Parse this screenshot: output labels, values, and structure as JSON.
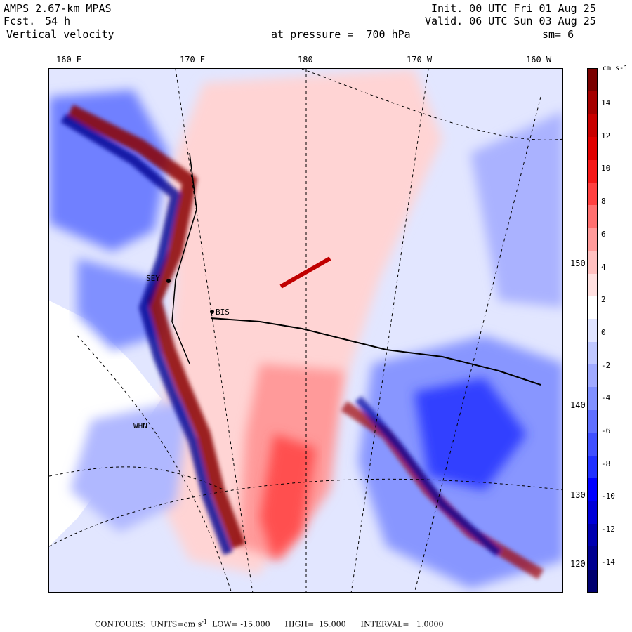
{
  "header": {
    "model": "AMPS 2.67-km MPAS",
    "fcst_label": "Fcst.",
    "fcst_value": "54 h",
    "field": "Vertical velocity",
    "pressure_text": "at pressure =  700 hPa",
    "init_text": "Init. 00 UTC Fri 01 Aug 25",
    "valid_text": "Valid. 06 UTC Sun 03 Aug 25",
    "smoothing": "sm= 6"
  },
  "lon_labels": [
    "160 E",
    "170 E",
    "180",
    "170 W",
    "160 W"
  ],
  "lat_labels": [
    "150 W",
    "140 W",
    "130 W",
    "120 W"
  ],
  "station_labels": [
    "SEY",
    "BIS",
    "WHN"
  ],
  "colorbar": {
    "units": "cm s-1",
    "labels": [
      "14",
      "12",
      "10",
      "8",
      "6",
      "4",
      "2",
      "0",
      "-2",
      "-4",
      "-6",
      "-8",
      "-10",
      "-12",
      "-14"
    ],
    "colors": [
      "#7a0000",
      "#a50000",
      "#c80000",
      "#e00000",
      "#f51818",
      "#ff4040",
      "#ff7070",
      "#ff9a9a",
      "#ffc0c0",
      "#ffe0e0",
      "#ffffff",
      "#e0e4ff",
      "#c0c8ff",
      "#a0aaff",
      "#8090ff",
      "#6070ff",
      "#4050ff",
      "#2030ff",
      "#0000ff",
      "#0000d8",
      "#0000b0",
      "#000090",
      "#000070"
    ]
  },
  "footer": {
    "contours_label": "CONTOURS:",
    "units_text": "UNITS=cm s",
    "units_sup": "-1",
    "low_text": "LOW= -15.000",
    "high_text": "HIGH=  15.000",
    "interval_text": "INTERVAL=   1.0000"
  }
}
